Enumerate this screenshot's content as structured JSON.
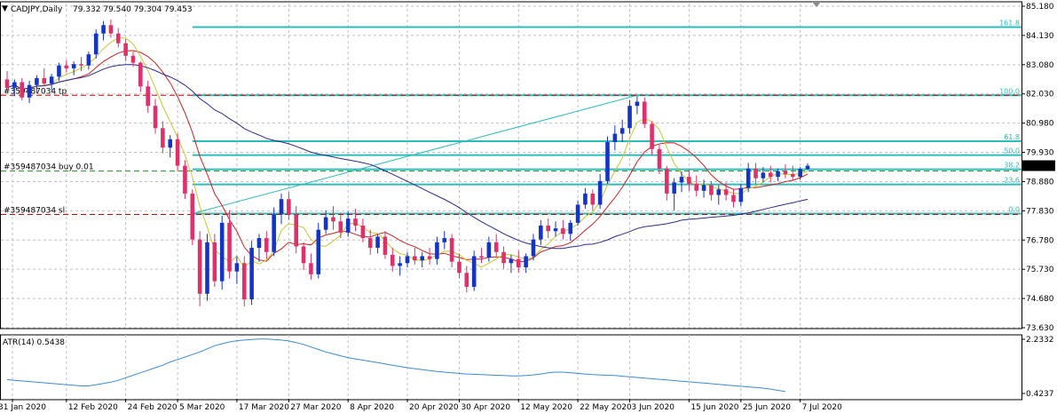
{
  "chart_data": {
    "type": "candlestick",
    "title": "CADJPY,Daily",
    "ohlc_text": "79.332 79.540 79.304 79.453",
    "price_axis": {
      "range": [
        73.63,
        85.18
      ],
      "ticks": [
        85.18,
        84.13,
        83.08,
        82.03,
        80.98,
        79.93,
        78.88,
        77.83,
        76.78,
        75.73,
        74.68,
        73.63
      ],
      "tick_labels": [
        "85.180",
        "84.130",
        "83.080",
        "82.030",
        "80.980",
        "79.930",
        "78.880",
        "77.830",
        "76.780",
        "75.730",
        "74.680",
        "73.630"
      ],
      "current_price": 79.453,
      "current_price_label": "79.453"
    },
    "date_labels": [
      "31 Jan 2020",
      "12 Feb 2020",
      "24 Feb 2020",
      "5 Mar 2020",
      "17 Mar 2020",
      "27 Mar 2020",
      "8 Apr 2020",
      "20 Apr 2020",
      "30 Apr 2020",
      "12 May 2020",
      "22 May 2020",
      "3 Jun 2020",
      "15 Jun 2020",
      "25 Jun 2020",
      "7 Jul 2020"
    ],
    "fibonacci": {
      "levels": [
        {
          "label": "161.8",
          "price": 84.43
        },
        {
          "label": "100.0",
          "price": 81.98
        },
        {
          "label": "61.8",
          "price": 80.33
        },
        {
          "label": "50.0",
          "price": 79.83
        },
        {
          "label": "38.2",
          "price": 79.32
        },
        {
          "label": "23.6",
          "price": 78.78
        },
        {
          "label": "0.0",
          "price": 77.73
        }
      ],
      "start_date_index": 25,
      "swing_low": 77.73,
      "swing_high": 81.98
    },
    "order_lines": [
      {
        "label": "#359487034 tp",
        "price": 81.98,
        "color": "#cc0000"
      },
      {
        "label": "#359487034 buy 0.01",
        "price": 79.26,
        "color": "#2e9b2e"
      },
      {
        "label": "#359487034 sl",
        "price": 77.7,
        "color": "#cc0000"
      }
    ],
    "atr": {
      "label": "ATR(14) 0.5438",
      "scale_labels": [
        "2.2332",
        "0.4237"
      ],
      "range": [
        0.4237,
        2.2332
      ],
      "values": [
        0.92,
        0.9,
        0.88,
        0.86,
        0.84,
        0.82,
        0.8,
        0.78,
        0.76,
        0.74,
        0.72,
        0.72,
        0.76,
        0.8,
        0.84,
        0.9,
        0.98,
        1.06,
        1.14,
        1.22,
        1.3,
        1.38,
        1.48,
        1.56,
        1.64,
        1.72,
        1.8,
        1.9,
        2.0,
        2.06,
        2.12,
        2.16,
        2.18,
        2.2,
        2.21,
        2.21,
        2.2,
        2.18,
        2.15,
        2.1,
        2.04,
        1.96,
        1.88,
        1.8,
        1.74,
        1.68,
        1.62,
        1.58,
        1.54,
        1.5,
        1.46,
        1.42,
        1.38,
        1.34,
        1.3,
        1.27,
        1.24,
        1.21,
        1.18,
        1.16,
        1.14,
        1.12,
        1.1,
        1.09,
        1.08,
        1.07,
        1.06,
        1.05,
        1.04,
        1.04,
        1.05,
        1.07,
        1.1,
        1.14,
        1.16,
        1.16,
        1.14,
        1.12,
        1.1,
        1.08,
        1.07,
        1.06,
        1.05,
        1.03,
        1.01,
        0.99,
        0.97,
        0.95,
        0.93,
        0.91,
        0.89,
        0.87,
        0.85,
        0.83,
        0.81,
        0.79,
        0.77,
        0.75,
        0.73,
        0.71,
        0.69,
        0.67,
        0.65,
        0.62,
        0.58,
        0.54
      ]
    },
    "candles": [
      [
        82.55,
        82.85,
        82.15,
        82.25
      ],
      [
        82.25,
        82.55,
        81.95,
        82.45
      ],
      [
        82.45,
        82.6,
        81.8,
        81.9
      ],
      [
        81.9,
        82.5,
        81.7,
        82.35
      ],
      [
        82.35,
        82.7,
        82.05,
        82.6
      ],
      [
        82.6,
        82.95,
        82.3,
        82.4
      ],
      [
        82.4,
        82.75,
        82.15,
        82.65
      ],
      [
        82.65,
        83.15,
        82.5,
        83.05
      ],
      [
        83.05,
        83.25,
        82.8,
        82.95
      ],
      [
        82.95,
        83.2,
        82.7,
        83.1
      ],
      [
        83.1,
        83.35,
        82.85,
        83.05
      ],
      [
        83.05,
        83.55,
        82.9,
        83.45
      ],
      [
        83.45,
        84.35,
        83.3,
        84.2
      ],
      [
        84.2,
        84.65,
        83.95,
        84.5
      ],
      [
        84.5,
        84.7,
        84.05,
        84.2
      ],
      [
        84.2,
        84.4,
        83.7,
        83.85
      ],
      [
        83.85,
        84.0,
        83.2,
        83.4
      ],
      [
        83.4,
        83.55,
        83.0,
        83.15
      ],
      [
        83.15,
        83.2,
        82.1,
        82.3
      ],
      [
        82.3,
        82.5,
        81.35,
        81.6
      ],
      [
        81.6,
        81.85,
        80.6,
        80.8
      ],
      [
        80.8,
        81.05,
        79.9,
        80.1
      ],
      [
        80.1,
        80.55,
        79.75,
        80.4
      ],
      [
        80.4,
        80.6,
        79.25,
        79.45
      ],
      [
        79.45,
        79.65,
        78.25,
        78.45
      ],
      [
        78.45,
        78.6,
        76.6,
        76.8
      ],
      [
        76.8,
        77.1,
        74.4,
        74.85
      ],
      [
        74.85,
        77.0,
        74.6,
        76.7
      ],
      [
        76.7,
        77.0,
        75.1,
        75.3
      ],
      [
        75.3,
        77.65,
        75.0,
        77.4
      ],
      [
        77.4,
        77.85,
        75.4,
        75.65
      ],
      [
        75.65,
        76.2,
        75.2,
        75.95
      ],
      [
        75.95,
        76.2,
        74.4,
        74.65
      ],
      [
        74.65,
        76.75,
        74.45,
        76.5
      ],
      [
        76.5,
        77.0,
        76.0,
        76.85
      ],
      [
        76.85,
        77.1,
        76.1,
        76.35
      ],
      [
        76.35,
        77.95,
        76.2,
        77.7
      ],
      [
        77.7,
        78.45,
        77.35,
        78.25
      ],
      [
        78.25,
        78.5,
        77.5,
        77.7
      ],
      [
        77.7,
        78.0,
        76.3,
        76.55
      ],
      [
        76.55,
        76.7,
        75.7,
        75.95
      ],
      [
        75.95,
        76.3,
        75.35,
        75.55
      ],
      [
        75.55,
        77.4,
        75.4,
        77.15
      ],
      [
        77.15,
        77.85,
        77.0,
        77.6
      ],
      [
        77.6,
        78.0,
        77.15,
        77.45
      ],
      [
        77.45,
        77.75,
        76.85,
        77.05
      ],
      [
        77.05,
        77.8,
        76.9,
        77.55
      ],
      [
        77.55,
        77.9,
        77.1,
        77.3
      ],
      [
        77.3,
        77.55,
        76.7,
        76.85
      ],
      [
        76.85,
        77.15,
        76.25,
        76.5
      ],
      [
        76.5,
        77.0,
        76.3,
        76.9
      ],
      [
        76.9,
        77.1,
        76.1,
        76.25
      ],
      [
        76.25,
        76.5,
        75.65,
        75.85
      ],
      [
        75.85,
        76.2,
        75.5,
        75.95
      ],
      [
        75.95,
        76.35,
        75.8,
        76.2
      ],
      [
        76.2,
        76.5,
        75.9,
        76.05
      ],
      [
        76.05,
        76.35,
        75.8,
        76.2
      ],
      [
        76.2,
        76.5,
        75.9,
        76.1
      ],
      [
        76.1,
        76.9,
        75.9,
        76.7
      ],
      [
        76.7,
        77.1,
        76.45,
        76.85
      ],
      [
        76.85,
        77.0,
        75.8,
        76.0
      ],
      [
        76.0,
        76.3,
        75.4,
        75.6
      ],
      [
        75.6,
        75.85,
        74.9,
        75.1
      ],
      [
        75.1,
        76.4,
        74.95,
        76.2
      ],
      [
        76.2,
        76.5,
        75.95,
        76.15
      ],
      [
        76.15,
        76.9,
        76.0,
        76.7
      ],
      [
        76.7,
        77.0,
        76.2,
        76.35
      ],
      [
        76.35,
        76.55,
        75.75,
        75.95
      ],
      [
        75.95,
        76.25,
        75.6,
        76.1
      ],
      [
        76.1,
        76.4,
        75.6,
        75.8
      ],
      [
        75.8,
        76.3,
        75.6,
        76.2
      ],
      [
        76.2,
        77.0,
        76.05,
        76.8
      ],
      [
        76.8,
        77.5,
        76.6,
        77.3
      ],
      [
        77.3,
        77.55,
        76.85,
        77.1
      ],
      [
        77.1,
        77.45,
        76.9,
        77.2
      ],
      [
        77.2,
        77.5,
        76.8,
        77.0
      ],
      [
        77.0,
        77.5,
        76.75,
        77.4
      ],
      [
        77.4,
        78.2,
        77.3,
        78.05
      ],
      [
        78.05,
        78.65,
        77.9,
        78.45
      ],
      [
        78.45,
        78.6,
        77.85,
        78.05
      ],
      [
        78.05,
        79.15,
        77.9,
        78.9
      ],
      [
        78.9,
        80.5,
        78.8,
        80.3
      ],
      [
        80.3,
        80.9,
        80.0,
        80.6
      ],
      [
        80.6,
        81.1,
        80.3,
        80.8
      ],
      [
        80.8,
        81.8,
        80.6,
        81.6
      ],
      [
        81.6,
        81.95,
        81.3,
        81.75
      ],
      [
        81.75,
        81.9,
        80.8,
        80.95
      ],
      [
        80.95,
        81.05,
        79.85,
        80.05
      ],
      [
        80.05,
        80.2,
        79.15,
        79.35
      ],
      [
        79.35,
        79.45,
        78.2,
        78.45
      ],
      [
        78.45,
        79.0,
        77.85,
        78.85
      ],
      [
        78.85,
        79.25,
        78.5,
        79.05
      ],
      [
        79.05,
        79.3,
        78.55,
        78.8
      ],
      [
        78.8,
        79.1,
        78.35,
        78.55
      ],
      [
        78.55,
        78.95,
        78.3,
        78.75
      ],
      [
        78.75,
        78.9,
        78.2,
        78.4
      ],
      [
        78.4,
        78.75,
        78.05,
        78.6
      ],
      [
        78.6,
        78.85,
        78.2,
        78.4
      ],
      [
        78.4,
        78.6,
        77.95,
        78.15
      ],
      [
        78.15,
        78.8,
        78.0,
        78.65
      ],
      [
        78.65,
        79.55,
        78.5,
        79.35
      ],
      [
        79.35,
        79.55,
        78.8,
        79.0
      ],
      [
        79.0,
        79.4,
        78.85,
        79.2
      ],
      [
        79.2,
        79.45,
        78.85,
        79.05
      ],
      [
        79.05,
        79.35,
        78.9,
        79.25
      ],
      [
        79.25,
        79.5,
        79.0,
        79.15
      ],
      [
        79.15,
        79.45,
        78.9,
        79.05
      ],
      [
        79.05,
        79.4,
        78.95,
        79.33
      ],
      [
        79.33,
        79.54,
        79.3,
        79.45
      ]
    ],
    "moving_averages": [
      {
        "color": "#cc2222",
        "period": 10
      },
      {
        "color": "#c8c832",
        "period": 5
      },
      {
        "color": "#2a2a8a",
        "period": 50
      }
    ],
    "colors": {
      "bull": "#1434c8",
      "bear": "#e0306a",
      "fib": "#2bbcbc",
      "grid": "#b8c2cc"
    }
  }
}
